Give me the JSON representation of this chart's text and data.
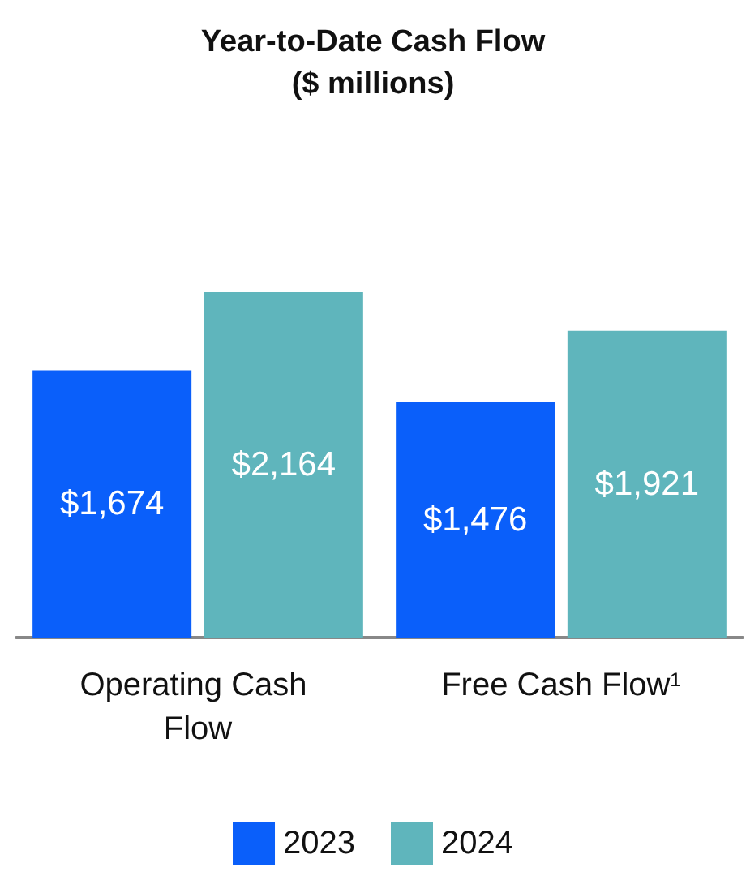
{
  "chart_data": {
    "type": "bar",
    "title": "Year-to-Date Cash Flow\n($ millions)",
    "categories": [
      "Operating Cash Flow",
      "Free Cash Flow¹"
    ],
    "series": [
      {
        "name": "2023",
        "color": "#0a5ffa",
        "values": [
          1674,
          1476
        ],
        "value_labels": [
          "$1,674",
          "$1,476"
        ]
      },
      {
        "name": "2024",
        "color": "#5fb5bc",
        "values": [
          2164,
          1921
        ],
        "value_labels": [
          "$2,164",
          "$1,921"
        ]
      }
    ],
    "legend": "bottom"
  }
}
